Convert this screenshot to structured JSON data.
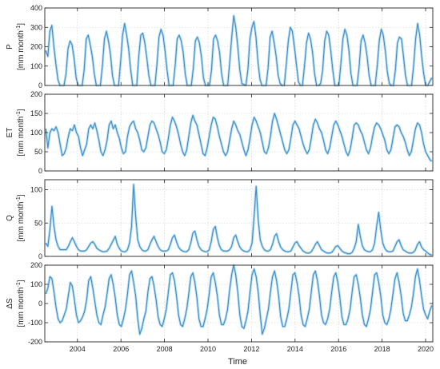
{
  "figure": {
    "xlabel": "Time",
    "x_ticks": [
      "2004",
      "2006",
      "2008",
      "2010",
      "2012",
      "2014",
      "2016",
      "2018",
      "2020"
    ],
    "x_tick_values": [
      2004,
      2006,
      2008,
      2010,
      2012,
      2014,
      2016,
      2018,
      2020
    ],
    "xlim": [
      2002.5,
      2020.33
    ]
  },
  "colors": {
    "line": "#3a8fc9",
    "band": "#a8d2ee",
    "grid": "#cccccc",
    "axis": "#222222"
  },
  "chart_data": [
    {
      "type": "line",
      "name_label": "P",
      "unit_label": "[mm month-1]",
      "unit_main": "[mm month",
      "unit_exp": "-1",
      "unit_close": "]",
      "ylim": [
        0,
        400
      ],
      "yticks": [
        0,
        100,
        200,
        300,
        400
      ],
      "ytick_labels": [
        "0",
        "100",
        "200",
        "300",
        "400"
      ],
      "grid": true,
      "values": [
        180,
        150,
        280,
        310,
        200,
        110,
        30,
        0,
        0,
        0,
        60,
        190,
        230,
        210,
        140,
        40,
        0,
        0,
        0,
        80,
        240,
        260,
        210,
        150,
        60,
        0,
        0,
        0,
        100,
        240,
        280,
        230,
        160,
        50,
        0,
        0,
        0,
        120,
        260,
        320,
        260,
        190,
        80,
        0,
        0,
        0,
        150,
        260,
        270,
        220,
        140,
        50,
        0,
        0,
        0,
        110,
        250,
        290,
        260,
        180,
        80,
        0,
        0,
        0,
        100,
        240,
        260,
        230,
        170,
        60,
        0,
        0,
        0,
        90,
        230,
        250,
        220,
        150,
        40,
        0,
        0,
        0,
        80,
        240,
        260,
        230,
        170,
        60,
        0,
        0,
        0,
        120,
        250,
        360,
        300,
        200,
        80,
        10,
        5,
        0,
        80,
        240,
        300,
        330,
        250,
        120,
        30,
        0,
        0,
        0,
        90,
        250,
        280,
        220,
        150,
        50,
        10,
        0,
        0,
        110,
        230,
        300,
        280,
        200,
        110,
        20,
        0,
        0,
        100,
        220,
        270,
        240,
        170,
        60,
        0,
        0,
        10,
        80,
        230,
        280,
        260,
        180,
        80,
        0,
        0,
        0,
        110,
        240,
        290,
        260,
        180,
        60,
        0,
        0,
        0,
        90,
        230,
        260,
        220,
        150,
        50,
        0,
        0,
        0,
        100,
        230,
        290,
        260,
        180,
        70,
        10,
        0,
        0,
        80,
        220,
        250,
        240,
        150,
        50,
        0,
        0,
        0,
        100,
        240,
        320,
        260,
        150,
        60,
        0,
        0,
        20,
        40
      ]
    },
    {
      "type": "line",
      "name_label": "ET",
      "unit_label": "[mm month-1]",
      "unit_main": "[mm month",
      "unit_exp": "-1",
      "unit_close": "]",
      "ylim": [
        0,
        200
      ],
      "yticks": [
        0,
        50,
        100,
        150,
        200
      ],
      "ytick_labels": [
        "0",
        "50",
        "100",
        "150",
        "200"
      ],
      "grid": true,
      "values": [
        110,
        60,
        100,
        110,
        105,
        115,
        100,
        70,
        40,
        45,
        60,
        90,
        110,
        105,
        120,
        100,
        90,
        60,
        40,
        55,
        70,
        110,
        120,
        110,
        125,
        105,
        80,
        50,
        40,
        55,
        80,
        120,
        130,
        110,
        120,
        100,
        85,
        60,
        45,
        50,
        90,
        115,
        125,
        130,
        110,
        100,
        80,
        55,
        50,
        60,
        90,
        120,
        130,
        125,
        110,
        95,
        75,
        50,
        45,
        55,
        85,
        120,
        140,
        130,
        115,
        95,
        70,
        50,
        40,
        55,
        90,
        125,
        145,
        130,
        120,
        95,
        70,
        45,
        40,
        60,
        90,
        120,
        140,
        135,
        115,
        90,
        70,
        50,
        40,
        50,
        80,
        110,
        130,
        120,
        105,
        95,
        75,
        55,
        40,
        55,
        85,
        120,
        140,
        130,
        115,
        100,
        75,
        50,
        45,
        60,
        90,
        130,
        150,
        135,
        115,
        95,
        75,
        55,
        45,
        55,
        85,
        120,
        130,
        120,
        110,
        90,
        70,
        55,
        45,
        55,
        85,
        120,
        135,
        125,
        110,
        100,
        80,
        55,
        45,
        60,
        90,
        120,
        130,
        120,
        105,
        90,
        70,
        50,
        40,
        55,
        85,
        120,
        125,
        120,
        105,
        95,
        75,
        55,
        45,
        60,
        90,
        115,
        125,
        120,
        110,
        95,
        80,
        55,
        45,
        55,
        85,
        115,
        120,
        115,
        100,
        90,
        75,
        55,
        40,
        50,
        80,
        110,
        125,
        120,
        100,
        70,
        50,
        40,
        30,
        25
      ]
    },
    {
      "type": "line",
      "name_label": "Q",
      "unit_label": "[mm month-1]",
      "unit_main": "[mm month",
      "unit_exp": "-1",
      "unit_close": "]",
      "ylim": [
        0,
        115
      ],
      "yticks": [
        0,
        50,
        100
      ],
      "ytick_labels": [
        "0",
        "50",
        "100"
      ],
      "grid": true,
      "values": [
        20,
        15,
        40,
        75,
        45,
        25,
        15,
        10,
        10,
        10,
        10,
        15,
        22,
        28,
        22,
        15,
        10,
        8,
        8,
        8,
        10,
        15,
        20,
        22,
        18,
        12,
        10,
        8,
        7,
        7,
        8,
        12,
        18,
        24,
        30,
        18,
        12,
        8,
        7,
        7,
        10,
        20,
        45,
        108,
        60,
        25,
        15,
        10,
        8,
        8,
        10,
        18,
        25,
        30,
        22,
        15,
        10,
        8,
        8,
        8,
        10,
        18,
        28,
        32,
        22,
        14,
        10,
        8,
        7,
        7,
        10,
        20,
        35,
        38,
        25,
        15,
        10,
        8,
        7,
        7,
        10,
        22,
        40,
        45,
        28,
        16,
        10,
        8,
        8,
        8,
        10,
        15,
        28,
        32,
        22,
        14,
        10,
        8,
        7,
        7,
        10,
        20,
        60,
        105,
        55,
        25,
        15,
        10,
        8,
        8,
        10,
        18,
        30,
        34,
        22,
        14,
        10,
        8,
        7,
        7,
        8,
        14,
        20,
        22,
        16,
        12,
        8,
        6,
        5,
        5,
        7,
        12,
        18,
        22,
        16,
        10,
        8,
        6,
        5,
        5,
        6,
        10,
        15,
        16,
        12,
        8,
        6,
        5,
        4,
        4,
        6,
        12,
        22,
        48,
        30,
        16,
        10,
        8,
        7,
        7,
        10,
        20,
        45,
        66,
        40,
        20,
        12,
        8,
        7,
        7,
        8,
        15,
        22,
        25,
        16,
        10,
        8,
        6,
        5,
        5,
        6,
        10,
        18,
        22,
        14,
        10,
        8,
        5,
        3,
        2
      ]
    },
    {
      "type": "line",
      "name_label": "ΔS",
      "unit_label": "[mm month-1]",
      "unit_main": "[mm month",
      "unit_exp": "-1",
      "unit_close": "]",
      "ylim": [
        -200,
        200
      ],
      "yticks": [
        -200,
        -100,
        0,
        100,
        200
      ],
      "ytick_labels": [
        "-200",
        "-100",
        "0",
        "100",
        "200"
      ],
      "grid": true,
      "values": [
        50,
        80,
        140,
        130,
        60,
        -20,
        -80,
        -100,
        -90,
        -60,
        -30,
        40,
        110,
        90,
        20,
        -60,
        -100,
        -90,
        -70,
        -40,
        20,
        120,
        140,
        80,
        10,
        -60,
        -100,
        -110,
        -60,
        -20,
        50,
        130,
        150,
        100,
        30,
        -60,
        -110,
        -120,
        -80,
        -30,
        50,
        150,
        170,
        110,
        40,
        -80,
        -160,
        -130,
        -80,
        -40,
        60,
        130,
        140,
        90,
        20,
        -70,
        -110,
        -120,
        -80,
        -30,
        60,
        150,
        160,
        120,
        40,
        -60,
        -110,
        -120,
        -80,
        -30,
        50,
        140,
        160,
        110,
        30,
        -80,
        -120,
        -120,
        -80,
        -30,
        50,
        140,
        160,
        110,
        40,
        -60,
        -110,
        -110,
        -80,
        -30,
        70,
        150,
        200,
        150,
        60,
        -60,
        -120,
        -130,
        -90,
        -40,
        60,
        150,
        180,
        140,
        60,
        -60,
        -160,
        -130,
        -80,
        -30,
        60,
        140,
        170,
        120,
        40,
        -70,
        -120,
        -120,
        -80,
        -30,
        60,
        150,
        160,
        110,
        40,
        -60,
        -110,
        -120,
        -80,
        -30,
        60,
        150,
        170,
        120,
        40,
        -60,
        -100,
        -110,
        -80,
        -30,
        60,
        140,
        160,
        110,
        30,
        -70,
        -110,
        -110,
        -80,
        -30,
        60,
        140,
        150,
        100,
        30,
        -60,
        -110,
        -120,
        -80,
        -30,
        60,
        150,
        160,
        110,
        40,
        -60,
        -100,
        -110,
        -80,
        -30,
        50,
        130,
        160,
        110,
        40,
        -50,
        -90,
        -90,
        -60,
        -20,
        50,
        140,
        180,
        120,
        40,
        -30,
        -60,
        -80,
        -40,
        -10
      ]
    }
  ]
}
